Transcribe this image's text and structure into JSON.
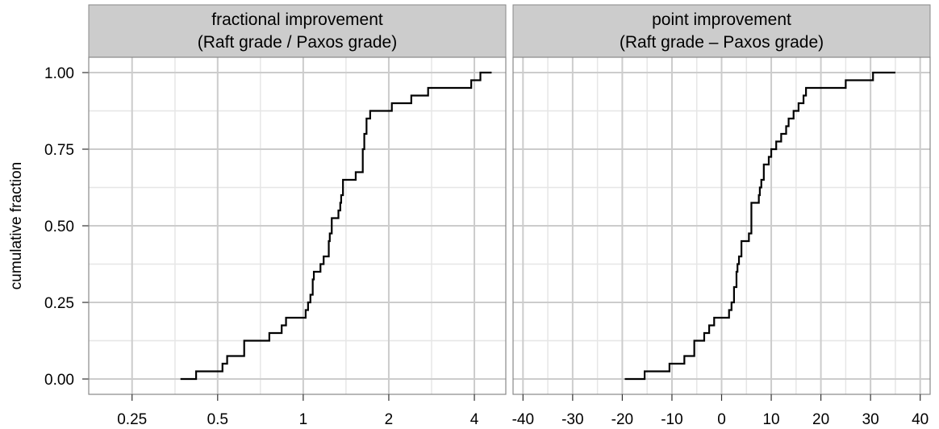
{
  "chart_data": {
    "type": "line",
    "step": true,
    "ylabel": "cumulative fraction",
    "y_ticks": [
      0,
      0.25,
      0.5,
      0.75,
      1
    ],
    "y_tick_labels": [
      "0.00",
      "0.25",
      "0.50",
      "0.75",
      "1.00"
    ],
    "ylim": [
      -0.05,
      1.05
    ],
    "grid": true,
    "colors": {
      "strip_bg": "#cccccc",
      "panel_border": "#888888",
      "grid_major": "#cccccc",
      "grid_minor": "#e6e6e6",
      "line": "#000000"
    },
    "panels": [
      {
        "title_line1": "fractional improvement",
        "title_line2": "(Raft grade / Paxos grade)",
        "x_scale": "log2",
        "xlim": [
          0.176,
          5.16
        ],
        "x_ticks": [
          0.25,
          0.5,
          1,
          2,
          4
        ],
        "x_tick_labels": [
          "0.25",
          "0.5",
          "1",
          "2",
          "4"
        ],
        "x_minor": [
          0.354,
          0.707,
          1.414,
          2.828
        ],
        "steps": [
          [
            0.37,
            0.0
          ],
          [
            0.42,
            0.025
          ],
          [
            0.52,
            0.05
          ],
          [
            0.54,
            0.075
          ],
          [
            0.62,
            0.125
          ],
          [
            0.76,
            0.15
          ],
          [
            0.84,
            0.175
          ],
          [
            0.87,
            0.2
          ],
          [
            1.02,
            0.225
          ],
          [
            1.04,
            0.25
          ],
          [
            1.06,
            0.275
          ],
          [
            1.08,
            0.325
          ],
          [
            1.09,
            0.35
          ],
          [
            1.15,
            0.375
          ],
          [
            1.18,
            0.4
          ],
          [
            1.23,
            0.45
          ],
          [
            1.24,
            0.475
          ],
          [
            1.26,
            0.525
          ],
          [
            1.33,
            0.55
          ],
          [
            1.35,
            0.575
          ],
          [
            1.36,
            0.6
          ],
          [
            1.38,
            0.65
          ],
          [
            1.53,
            0.675
          ],
          [
            1.62,
            0.75
          ],
          [
            1.64,
            0.8
          ],
          [
            1.67,
            0.85
          ],
          [
            1.72,
            0.875
          ],
          [
            2.05,
            0.9
          ],
          [
            2.4,
            0.925
          ],
          [
            2.75,
            0.95
          ],
          [
            3.9,
            0.975
          ],
          [
            4.2,
            1.0
          ],
          [
            4.6,
            1.0
          ]
        ]
      },
      {
        "title_line1": "point improvement",
        "title_line2": "(Raft grade – Paxos grade)",
        "x_scale": "linear",
        "xlim": [
          -42,
          42
        ],
        "x_ticks": [
          -40,
          -30,
          -20,
          -10,
          0,
          10,
          20,
          30,
          40
        ],
        "x_tick_labels": [
          "-40",
          "-30",
          "-20",
          "-10",
          "0",
          "10",
          "20",
          "30",
          "40"
        ],
        "x_minor": [
          -35,
          -25,
          -15,
          -5,
          5,
          15,
          25,
          35
        ],
        "steps": [
          [
            -19.5,
            0.0
          ],
          [
            -15.5,
            0.025
          ],
          [
            -10.5,
            0.05
          ],
          [
            -7.5,
            0.075
          ],
          [
            -5.5,
            0.125
          ],
          [
            -3.5,
            0.15
          ],
          [
            -2.5,
            0.175
          ],
          [
            -1.5,
            0.2
          ],
          [
            1.5,
            0.225
          ],
          [
            2.0,
            0.25
          ],
          [
            2.5,
            0.3
          ],
          [
            3.0,
            0.35
          ],
          [
            3.2,
            0.375
          ],
          [
            3.5,
            0.4
          ],
          [
            4.0,
            0.45
          ],
          [
            5.5,
            0.475
          ],
          [
            6.0,
            0.575
          ],
          [
            7.5,
            0.6
          ],
          [
            7.7,
            0.625
          ],
          [
            8.0,
            0.65
          ],
          [
            8.5,
            0.7
          ],
          [
            9.5,
            0.725
          ],
          [
            10.0,
            0.75
          ],
          [
            11.0,
            0.775
          ],
          [
            12.0,
            0.8
          ],
          [
            13.0,
            0.825
          ],
          [
            13.5,
            0.85
          ],
          [
            14.5,
            0.875
          ],
          [
            15.5,
            0.9
          ],
          [
            16.5,
            0.925
          ],
          [
            17.0,
            0.95
          ],
          [
            25.0,
            0.975
          ],
          [
            30.5,
            1.0
          ],
          [
            35.0,
            1.0
          ]
        ]
      }
    ]
  }
}
